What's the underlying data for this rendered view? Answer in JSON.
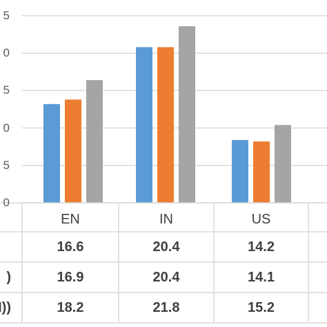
{
  "chart_data": {
    "type": "bar",
    "categories": [
      "EN",
      "IN",
      "US"
    ],
    "series": [
      {
        "values": [
          16.6,
          20.4,
          14.2
        ],
        "color": "#5b9bd5"
      },
      {
        "values": [
          16.9,
          20.4,
          14.1
        ],
        "color": "#ed7d31"
      },
      {
        "values": [
          18.2,
          21.8,
          15.2
        ],
        "color": "#a5a5a5"
      }
    ],
    "visible_tick_labels": [
      "5",
      "0",
      "5",
      "0",
      "5",
      "0"
    ],
    "ylim": [
      10,
      23
    ],
    "grid": true,
    "table_row_labels_partial": [
      "",
      ")",
      "N))"
    ],
    "table": [
      [
        "16.6",
        "20.4",
        "14.2"
      ],
      [
        "16.9",
        "20.4",
        "14.1"
      ],
      [
        "18.2",
        "21.8",
        "15.2"
      ]
    ]
  }
}
